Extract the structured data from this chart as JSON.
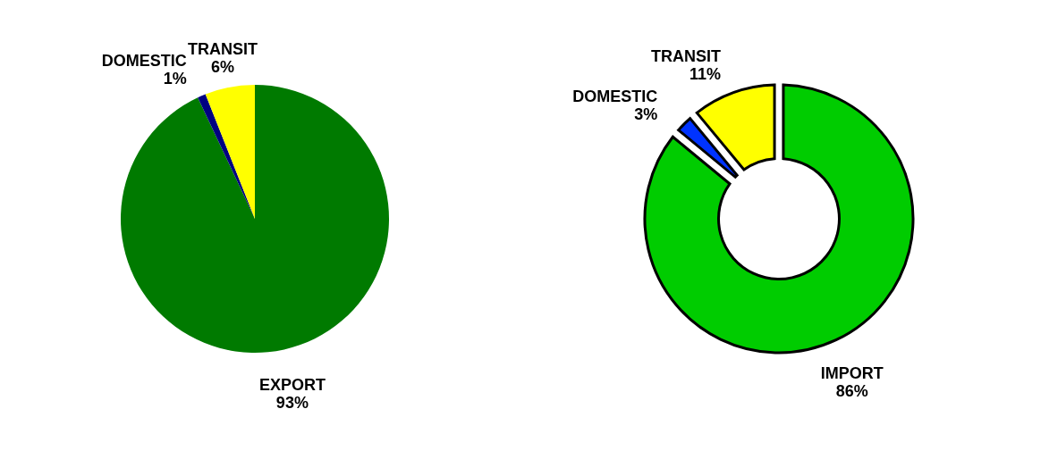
{
  "chart_data": [
    {
      "type": "pie",
      "categories": [
        "EXPORT",
        "DOMESTIC",
        "TRANSIT"
      ],
      "values": [
        93,
        1,
        6
      ],
      "colors": [
        "#007a00",
        "#000080",
        "#ffff00"
      ],
      "value_labels": [
        "93%",
        "1%",
        "6%"
      ]
    },
    {
      "type": "donut",
      "categories": [
        "IMPORT",
        "DOMESTIC",
        "TRANSIT"
      ],
      "values": [
        86,
        3,
        11
      ],
      "colors": [
        "#00cc00",
        "#0033ff",
        "#ffff00"
      ],
      "value_labels": [
        "86%",
        "3%",
        "11%"
      ]
    }
  ]
}
